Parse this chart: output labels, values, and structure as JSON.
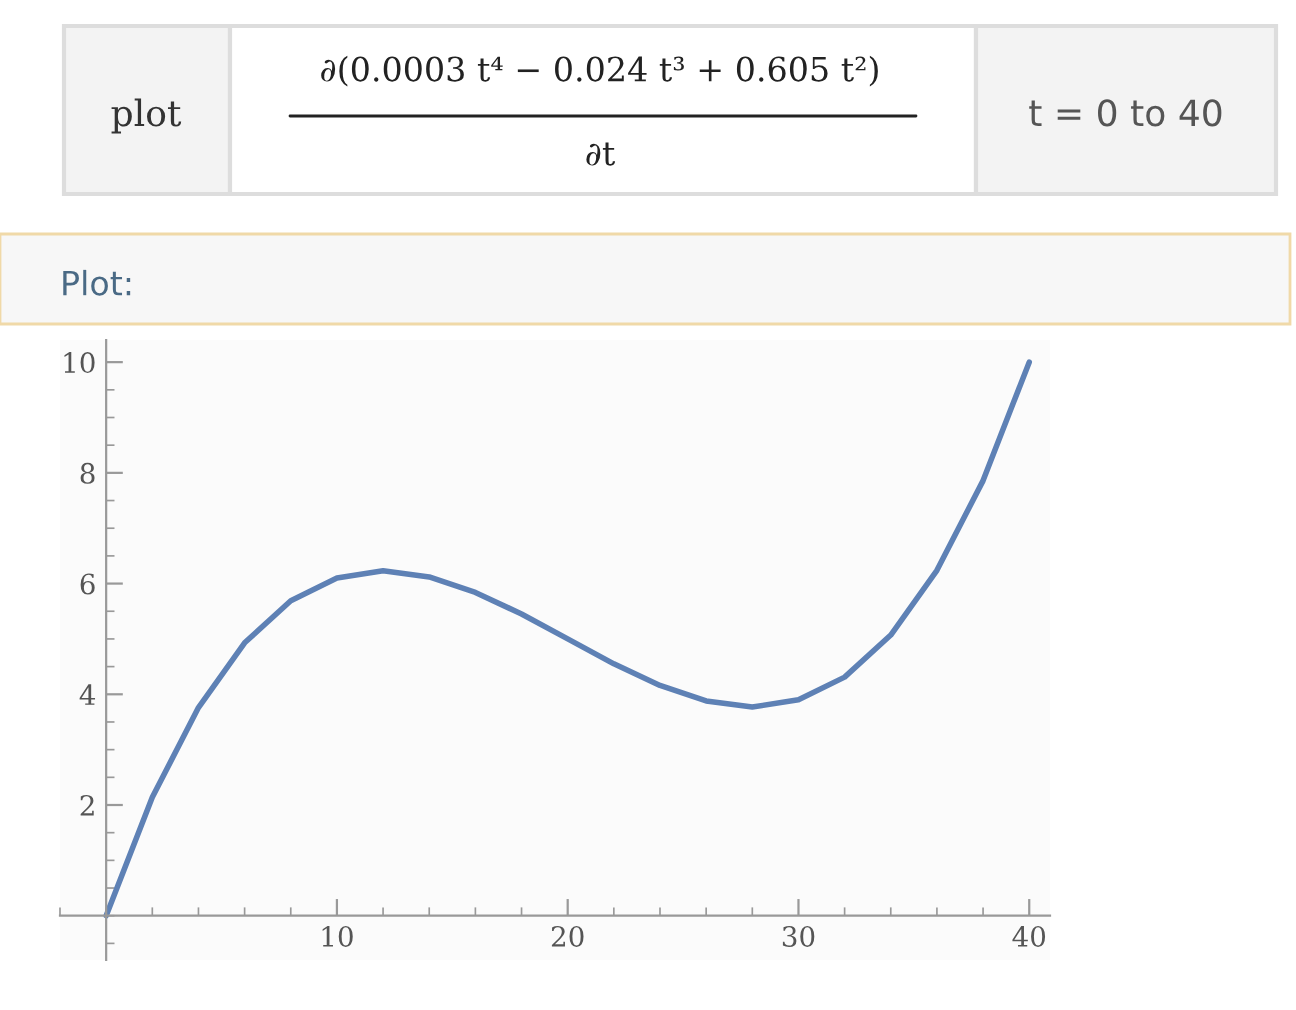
{
  "chart_data": {
    "type": "line",
    "annotations": [
      "plot",
      "∂(0.0003 t⁴ − 0.024 t³ + 0.605 t²)",
      "∂t",
      "t = 0 to 40",
      "Plot:"
    ],
    "x": [
      0,
      2,
      4,
      6,
      8,
      10,
      12,
      14,
      16,
      18,
      20,
      22,
      24,
      26,
      28,
      30,
      32,
      34,
      36,
      38,
      40
    ],
    "series": [
      {
        "color": "#5e81b5",
        "values": [
          0,
          2.14,
          3.76,
          4.93,
          5.69,
          6.1,
          6.23,
          6.12,
          5.84,
          5.45,
          5.0,
          4.55,
          4.16,
          3.88,
          3.77,
          3.9,
          4.31,
          5.07,
          6.24,
          7.86,
          10.0
        ]
      }
    ],
    "xlim": [
      -2,
      40.9
    ],
    "ylim": [
      -0.8,
      10.4
    ],
    "xticks": [
      10,
      20,
      30,
      40
    ],
    "yticks": [
      2,
      4,
      6,
      8,
      10
    ],
    "grid": false,
    "legend": false,
    "line_style": "solid"
  }
}
